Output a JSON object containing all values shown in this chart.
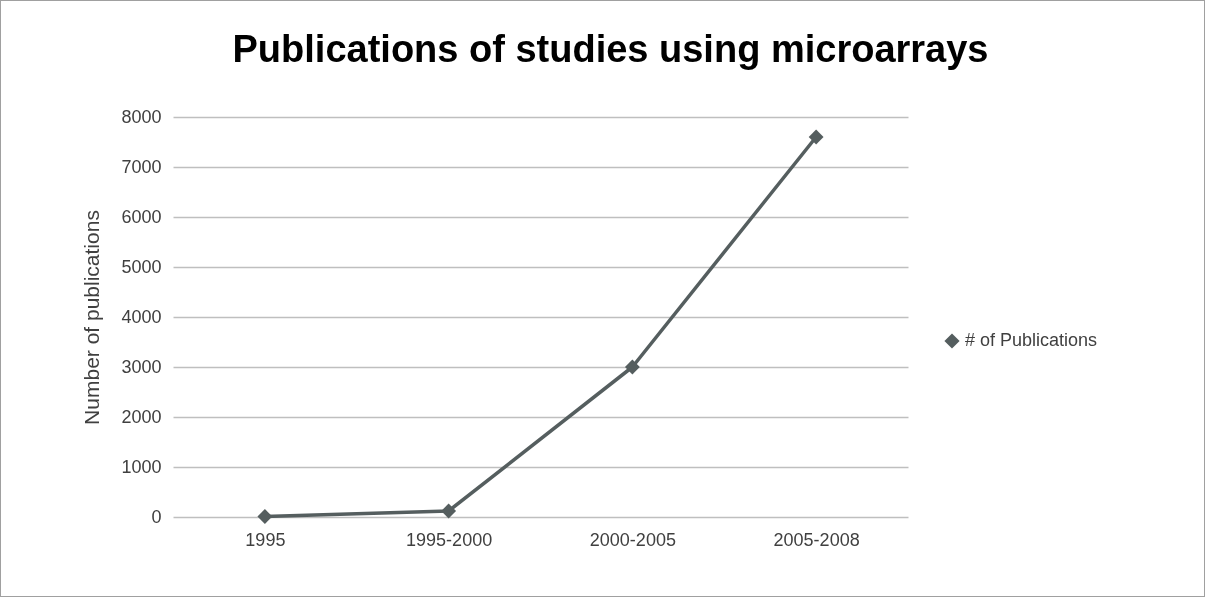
{
  "chart_data": {
    "type": "line",
    "title": "Publications of studies using microarrays",
    "ylabel": "Number of publications",
    "categories": [
      "1995",
      "1995-2000",
      "2000-2005",
      "2005-2008"
    ],
    "series": [
      {
        "name": "# of Publications",
        "color": "#555e5f",
        "values": [
          10,
          120,
          3000,
          7600
        ]
      }
    ],
    "ylim": [
      0,
      8000
    ],
    "yticks": [
      0,
      1000,
      2000,
      3000,
      4000,
      5000,
      6000,
      7000,
      8000
    ],
    "grid": "y",
    "legend": "right",
    "marker": "diamond",
    "line_style": "solid"
  }
}
